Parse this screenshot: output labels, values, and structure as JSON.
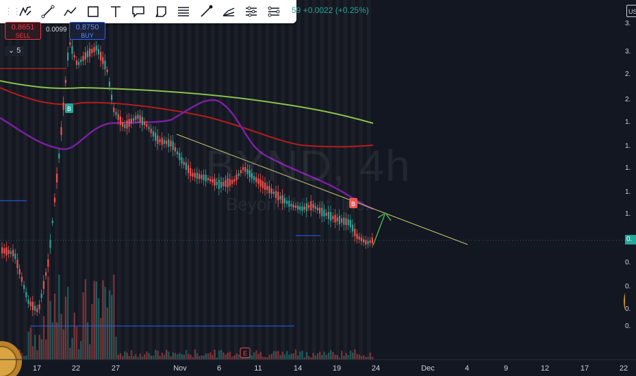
{
  "watermark": {
    "title": "BYND, 4h",
    "subtitle": "Beyond Meat, Inc."
  },
  "quote": {
    "change": "59 +0.0022 (+0.25%)"
  },
  "trade": {
    "sell_price": "0.8651",
    "sell_label": "SELL",
    "spread": "0.0099",
    "buy_price": "0.8750",
    "buy_label": "BUY"
  },
  "interval": {
    "label": "5",
    "chevron": "chevron-down-icon"
  },
  "drawing_toolbar": {
    "tools": [
      "brush-icon",
      "line-icon",
      "path-icon",
      "rectangle-icon",
      "text-icon",
      "callout-icon",
      "note-icon",
      "parallel-channel-icon",
      "measure-icon",
      "fib-icon",
      "settings-lines-icon",
      "more-icon"
    ]
  },
  "x_axis": {
    "labels": [
      "17",
      "22",
      "27",
      "Nov",
      "6",
      "11",
      "14",
      "19",
      "24",
      "Dec",
      "4",
      "9",
      "12",
      "17",
      "22"
    ]
  },
  "y_axis": {
    "labels": [
      "3.",
      "3.",
      "2.",
      "2.",
      "1.",
      "1.",
      "1.",
      "1.",
      "1.",
      "0.",
      "0.",
      "0.",
      "0."
    ],
    "currency": "US"
  },
  "last_price_tag": "0.",
  "markers": {
    "buy_marker": "B",
    "sell_marker": "B",
    "earnings_marker": "E"
  },
  "colors": {
    "background": "#131722",
    "up": "#26a69a",
    "down": "#ef5350",
    "ma_green": "#8bc34a",
    "ma_red": "#b71c1c",
    "ma_purple": "#7b1fa2",
    "trendline": "#c8c86a",
    "arrow": "#4caf50",
    "level_blue": "#2962ff"
  }
}
